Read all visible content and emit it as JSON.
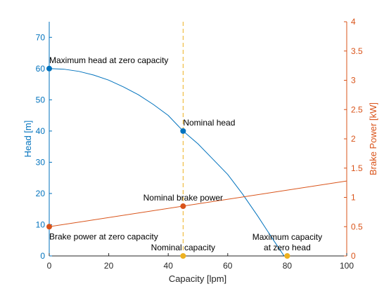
{
  "chart_data": {
    "type": "line",
    "xlabel": "Capacity [lpm]",
    "ylabel_left": "Head [m]",
    "ylabel_right": "Brake Power [kW]",
    "xlim": [
      0,
      100
    ],
    "ylim_left": [
      0,
      75
    ],
    "ylim_right": [
      0,
      4
    ],
    "x_ticks": [
      0,
      20,
      40,
      60,
      80,
      100
    ],
    "y_left_ticks": [
      0,
      10,
      20,
      30,
      40,
      50,
      60,
      70
    ],
    "y_right_ticks": [
      0,
      0.5,
      1,
      1.5,
      2,
      2.5,
      3,
      3.5,
      4
    ],
    "grid": false,
    "colors": {
      "head": "#0072BD",
      "power": "#D95319",
      "nominal": "#EDB120",
      "axis_left": "#0072BD",
      "axis_right": "#D95319",
      "axis_bottom": "#262626"
    },
    "series": [
      {
        "axis": "left",
        "style": "head",
        "x": [
          0,
          5,
          10,
          15,
          20,
          25,
          30,
          35,
          40,
          45,
          50,
          55,
          60,
          65,
          70,
          75,
          80
        ],
        "values": [
          60,
          59.8,
          59.1,
          57.9,
          56.3,
          54.1,
          51.6,
          48.5,
          45.0,
          40.0,
          35.9,
          31.0,
          26.1,
          19.8,
          12.9,
          5.6,
          -1.5
        ]
      },
      {
        "axis": "right",
        "style": "power",
        "x": [
          0,
          100
        ],
        "values": [
          0.5,
          1.28
        ]
      }
    ],
    "points": [
      {
        "axis": "left",
        "x": 0,
        "y": 60,
        "style": "head",
        "label": "Maximum head at zero capacity",
        "label_pos": "above-right"
      },
      {
        "axis": "left",
        "x": 45,
        "y": 40,
        "style": "head",
        "label": "Nominal head",
        "label_pos": "above-right"
      },
      {
        "axis": "right",
        "x": 0,
        "y": 0.5,
        "style": "power",
        "label": "Brake power at zero capacity",
        "label_pos": "below-right"
      },
      {
        "axis": "right",
        "x": 45,
        "y": 0.85,
        "style": "power",
        "label": "Nominal brake power",
        "label_pos": "above-center"
      },
      {
        "axis": "left",
        "x": 45,
        "y": 0,
        "style": "nominal",
        "label": "Nominal capacity",
        "label_pos": "above-center"
      },
      {
        "axis": "left",
        "x": 80,
        "y": 0,
        "style": "nominal",
        "label": "Maximum capacity\nat zero head",
        "label_pos": "above-center"
      }
    ],
    "vlines": [
      {
        "x": 45,
        "style": "nominal",
        "dash": true
      }
    ]
  }
}
